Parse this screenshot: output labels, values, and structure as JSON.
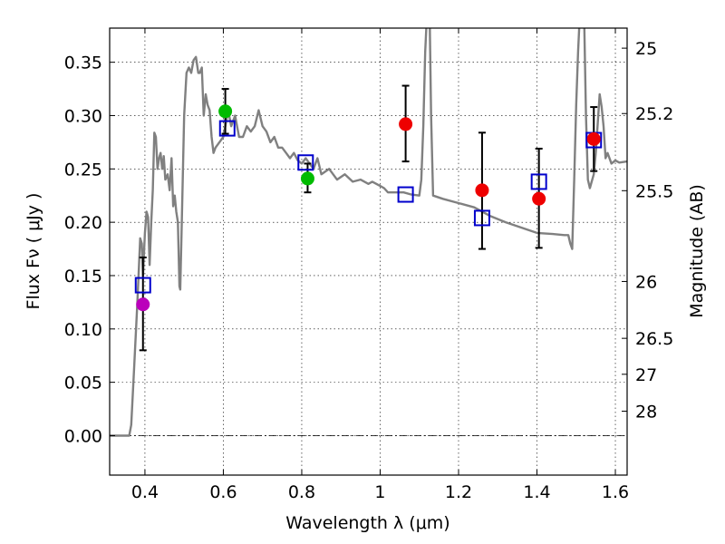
{
  "chart_data": {
    "type": "scatter",
    "xlabel": "Wavelength  λ (μm)",
    "ylabel": "Flux  Fν  ( μJy )",
    "ylabel_right": "Magnitude (AB)",
    "xlim": [
      0.31,
      1.63
    ],
    "ylim": [
      -0.037,
      0.382
    ],
    "grid": true,
    "x_ticks": [
      {
        "value": 0.4,
        "label": "0.4"
      },
      {
        "value": 0.6,
        "label": "0.6"
      },
      {
        "value": 0.8,
        "label": "0.8"
      },
      {
        "value": 1.0,
        "label": "1"
      },
      {
        "value": 1.2,
        "label": "1.2"
      },
      {
        "value": 1.4,
        "label": "1.4"
      },
      {
        "value": 1.6,
        "label": "1.6"
      }
    ],
    "y_ticks": [
      {
        "value": 0.0,
        "label": "0.00"
      },
      {
        "value": 0.05,
        "label": "0.05"
      },
      {
        "value": 0.1,
        "label": "0.10"
      },
      {
        "value": 0.15,
        "label": "0.15"
      },
      {
        "value": 0.2,
        "label": "0.20"
      },
      {
        "value": 0.25,
        "label": "0.25"
      },
      {
        "value": 0.3,
        "label": "0.30"
      },
      {
        "value": 0.35,
        "label": "0.35"
      }
    ],
    "right_ticks": [
      {
        "flux": 0.3632,
        "label": "25"
      },
      {
        "flux": 0.3019,
        "label": "25.2"
      },
      {
        "flux": 0.2296,
        "label": "25.5"
      },
      {
        "flux": 0.1445,
        "label": "26"
      },
      {
        "flux": 0.0912,
        "label": "26.5"
      },
      {
        "flux": 0.0575,
        "label": "27"
      },
      {
        "flux": 0.0229,
        "label": "28"
      }
    ],
    "colors": {
      "template": "#808080",
      "model": "#0000cc",
      "errorbar": "#000000",
      "blue_band": "#bb00bb",
      "optical": "#00bb00",
      "nir": "#ee0000"
    },
    "observed": [
      {
        "x": 0.395,
        "y": 0.123,
        "err_lo": 0.043,
        "err_hi": 0.044,
        "color": "#bb00bb"
      },
      {
        "x": 0.605,
        "y": 0.304,
        "err_lo": 0.021,
        "err_hi": 0.021,
        "color": "#00bb00"
      },
      {
        "x": 0.815,
        "y": 0.241,
        "err_lo": 0.013,
        "err_hi": 0.014,
        "color": "#00bb00"
      },
      {
        "x": 1.065,
        "y": 0.292,
        "err_lo": 0.035,
        "err_hi": 0.036,
        "color": "#ee0000"
      },
      {
        "x": 1.26,
        "y": 0.23,
        "err_lo": 0.055,
        "err_hi": 0.054,
        "color": "#ee0000"
      },
      {
        "x": 1.405,
        "y": 0.222,
        "err_lo": 0.046,
        "err_hi": 0.047,
        "color": "#ee0000"
      },
      {
        "x": 1.545,
        "y": 0.278,
        "err_lo": 0.03,
        "err_hi": 0.03,
        "color": "#ee0000"
      }
    ],
    "model_points": [
      {
        "x": 0.395,
        "y": 0.141
      },
      {
        "x": 0.61,
        "y": 0.288
      },
      {
        "x": 0.81,
        "y": 0.256
      },
      {
        "x": 1.065,
        "y": 0.226
      },
      {
        "x": 1.26,
        "y": 0.204
      },
      {
        "x": 1.405,
        "y": 0.238
      },
      {
        "x": 1.545,
        "y": 0.277
      }
    ],
    "template_spectrum": [
      [
        0.31,
        0.0
      ],
      [
        0.36,
        0.0
      ],
      [
        0.365,
        0.01
      ],
      [
        0.372,
        0.06
      ],
      [
        0.38,
        0.12
      ],
      [
        0.385,
        0.16
      ],
      [
        0.388,
        0.185
      ],
      [
        0.392,
        0.18
      ],
      [
        0.395,
        0.15
      ],
      [
        0.4,
        0.19
      ],
      [
        0.404,
        0.21
      ],
      [
        0.408,
        0.205
      ],
      [
        0.412,
        0.16
      ],
      [
        0.416,
        0.2
      ],
      [
        0.42,
        0.23
      ],
      [
        0.424,
        0.284
      ],
      [
        0.428,
        0.28
      ],
      [
        0.432,
        0.25
      ],
      [
        0.436,
        0.26
      ],
      [
        0.44,
        0.265
      ],
      [
        0.444,
        0.25
      ],
      [
        0.448,
        0.262
      ],
      [
        0.452,
        0.24
      ],
      [
        0.458,
        0.245
      ],
      [
        0.463,
        0.23
      ],
      [
        0.468,
        0.26
      ],
      [
        0.472,
        0.215
      ],
      [
        0.476,
        0.225
      ],
      [
        0.48,
        0.21
      ],
      [
        0.484,
        0.2
      ],
      [
        0.488,
        0.14
      ],
      [
        0.49,
        0.137
      ],
      [
        0.494,
        0.2
      ],
      [
        0.5,
        0.3
      ],
      [
        0.506,
        0.34
      ],
      [
        0.512,
        0.345
      ],
      [
        0.518,
        0.34
      ],
      [
        0.524,
        0.352
      ],
      [
        0.53,
        0.355
      ],
      [
        0.536,
        0.34
      ],
      [
        0.54,
        0.34
      ],
      [
        0.545,
        0.345
      ],
      [
        0.55,
        0.3
      ],
      [
        0.555,
        0.32
      ],
      [
        0.56,
        0.31
      ],
      [
        0.565,
        0.305
      ],
      [
        0.57,
        0.28
      ],
      [
        0.575,
        0.265
      ],
      [
        0.58,
        0.27
      ],
      [
        0.59,
        0.275
      ],
      [
        0.6,
        0.28
      ],
      [
        0.605,
        0.29
      ],
      [
        0.61,
        0.3
      ],
      [
        0.615,
        0.3
      ],
      [
        0.62,
        0.29
      ],
      [
        0.63,
        0.3
      ],
      [
        0.64,
        0.28
      ],
      [
        0.65,
        0.28
      ],
      [
        0.66,
        0.29
      ],
      [
        0.67,
        0.285
      ],
      [
        0.68,
        0.29
      ],
      [
        0.69,
        0.305
      ],
      [
        0.7,
        0.29
      ],
      [
        0.71,
        0.285
      ],
      [
        0.72,
        0.275
      ],
      [
        0.73,
        0.28
      ],
      [
        0.74,
        0.27
      ],
      [
        0.75,
        0.27
      ],
      [
        0.76,
        0.265
      ],
      [
        0.77,
        0.26
      ],
      [
        0.78,
        0.265
      ],
      [
        0.79,
        0.258
      ],
      [
        0.8,
        0.255
      ],
      [
        0.81,
        0.26
      ],
      [
        0.82,
        0.255
      ],
      [
        0.83,
        0.25
      ],
      [
        0.84,
        0.26
      ],
      [
        0.85,
        0.245
      ],
      [
        0.87,
        0.25
      ],
      [
        0.89,
        0.24
      ],
      [
        0.91,
        0.245
      ],
      [
        0.93,
        0.238
      ],
      [
        0.95,
        0.24
      ],
      [
        0.97,
        0.236
      ],
      [
        0.98,
        0.238
      ],
      [
        1.0,
        0.234
      ],
      [
        1.01,
        0.232
      ],
      [
        1.02,
        0.228
      ],
      [
        1.04,
        0.228
      ],
      [
        1.06,
        0.228
      ],
      [
        1.08,
        0.226
      ],
      [
        1.1,
        0.225
      ],
      [
        1.105,
        0.24
      ],
      [
        1.11,
        0.29
      ],
      [
        1.115,
        0.36
      ],
      [
        1.12,
        0.4
      ],
      [
        1.126,
        0.4
      ],
      [
        1.13,
        0.3
      ],
      [
        1.135,
        0.225
      ],
      [
        1.16,
        0.222
      ],
      [
        1.2,
        0.218
      ],
      [
        1.24,
        0.214
      ],
      [
        1.28,
        0.206
      ],
      [
        1.32,
        0.2
      ],
      [
        1.36,
        0.195
      ],
      [
        1.4,
        0.19
      ],
      [
        1.44,
        0.189
      ],
      [
        1.47,
        0.188
      ],
      [
        1.48,
        0.188
      ],
      [
        1.485,
        0.18
      ],
      [
        1.49,
        0.175
      ],
      [
        1.495,
        0.24
      ],
      [
        1.5,
        0.31
      ],
      [
        1.505,
        0.36
      ],
      [
        1.51,
        0.4
      ],
      [
        1.52,
        0.4
      ],
      [
        1.525,
        0.3
      ],
      [
        1.53,
        0.24
      ],
      [
        1.535,
        0.232
      ],
      [
        1.545,
        0.245
      ],
      [
        1.55,
        0.265
      ],
      [
        1.56,
        0.32
      ],
      [
        1.565,
        0.308
      ],
      [
        1.57,
        0.29
      ],
      [
        1.575,
        0.26
      ],
      [
        1.58,
        0.265
      ],
      [
        1.59,
        0.255
      ],
      [
        1.6,
        0.258
      ],
      [
        1.61,
        0.256
      ],
      [
        1.63,
        0.257
      ]
    ]
  }
}
